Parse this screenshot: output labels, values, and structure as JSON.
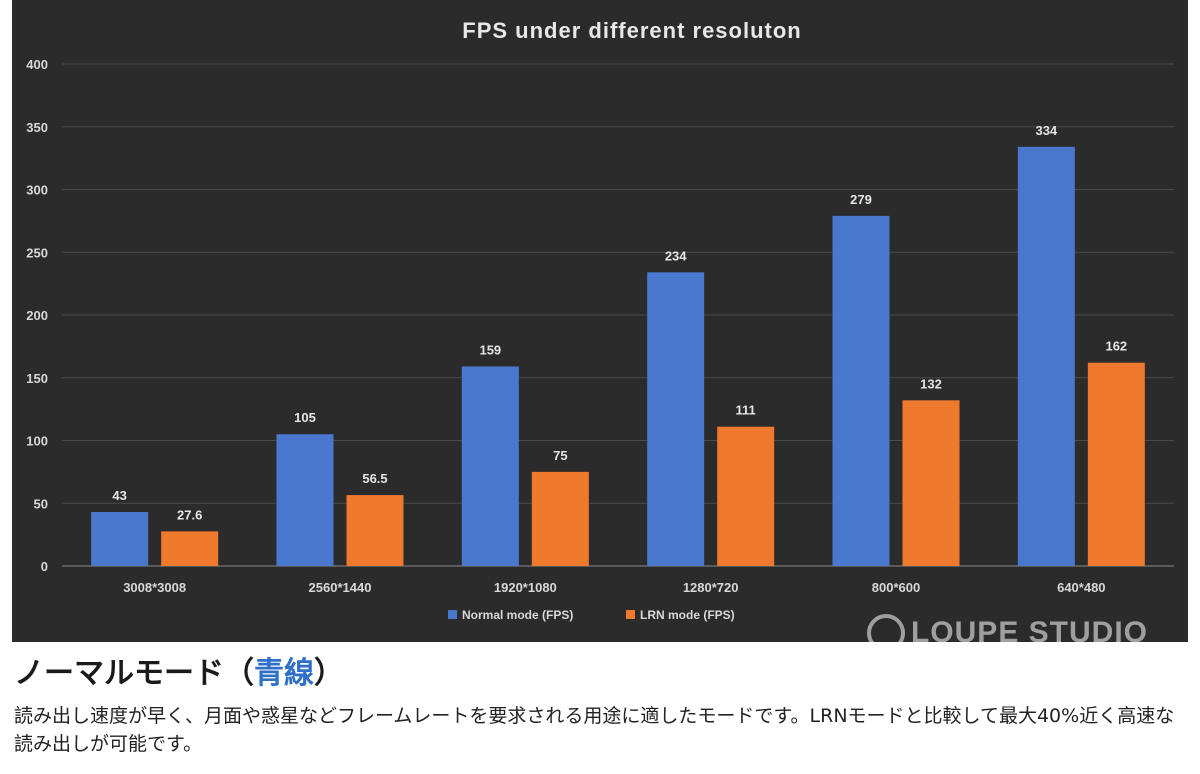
{
  "chart_data": {
    "type": "bar",
    "title": "FPS under different resoluton",
    "categories": [
      "3008*3008",
      "2560*1440",
      "1920*1080",
      "1280*720",
      "800*600",
      "640*480"
    ],
    "series": [
      {
        "name": "Normal mode (FPS)",
        "color": "#4a78cf",
        "values": [
          43,
          105,
          159,
          234,
          279,
          334
        ],
        "labels": [
          "43",
          "105",
          "159",
          "234",
          "279",
          "334"
        ]
      },
      {
        "name": "LRN mode (FPS)",
        "color": "#ef7a2e",
        "values": [
          27.6,
          56.5,
          75,
          111,
          132,
          162
        ],
        "labels": [
          "27.6",
          "56.5",
          "75",
          "111",
          "132",
          "162"
        ]
      }
    ],
    "ylim": [
      0,
      400
    ],
    "yticks": [
      "0",
      "50",
      "100",
      "150",
      "200",
      "250",
      "300",
      "350",
      "400"
    ],
    "grid": true,
    "legend": "bottom"
  },
  "watermark": "LOUPE STUDIO",
  "heading": {
    "text": "ノーマルモード（",
    "accent": "青線",
    "close": "）"
  },
  "description": "読み出し速度が早く、月面や惑星などフレームレートを要求される用途に適したモードです。LRNモードと比較して最大40%近く高速な読み出しが可能です。"
}
